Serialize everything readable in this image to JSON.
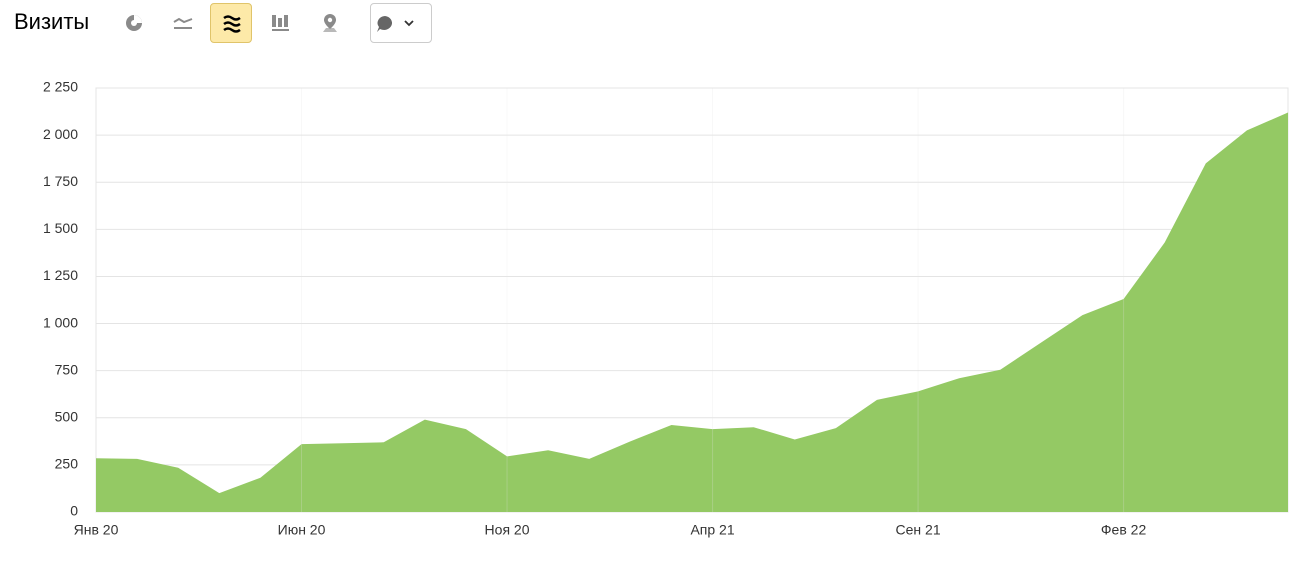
{
  "chart_data": {
    "type": "area",
    "title": "Визиты",
    "categories": [
      "Янв 20",
      null,
      null,
      null,
      null,
      "Июн 20",
      null,
      null,
      null,
      null,
      "Ноя 20",
      null,
      null,
      null,
      null,
      "Апр 21",
      null,
      null,
      null,
      null,
      "Сен 21",
      null,
      null,
      null,
      null,
      "Фев 22",
      null,
      null,
      null,
      null
    ],
    "values": [
      285,
      282,
      235,
      100,
      182,
      360,
      365,
      370,
      490,
      440,
      295,
      328,
      282,
      375,
      462,
      440,
      450,
      385,
      445,
      595,
      640,
      710,
      755,
      900,
      1045,
      1130,
      1430,
      1850,
      2025,
      2120
    ],
    "color": "#94c964",
    "ylim": [
      0,
      2250
    ],
    "yticks": [
      0,
      250,
      500,
      750,
      {
        "value": 1000,
        "label": "1 000"
      },
      {
        "value": 1250,
        "label": "1 250"
      },
      {
        "value": 1500,
        "label": "1 500"
      },
      {
        "value": 1750,
        "label": "1 750"
      },
      {
        "value": 2000,
        "label": "2 000"
      },
      {
        "value": 2250,
        "label": "2 250"
      }
    ],
    "grid": true
  }
}
